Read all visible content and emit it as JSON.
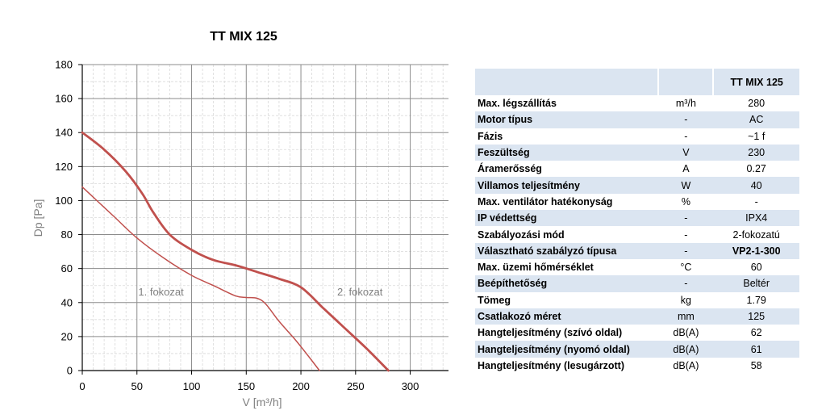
{
  "chart_data": {
    "type": "line",
    "title": "TT MIX 125",
    "xlabel": "V [m³/h]",
    "ylabel": "Dp [Pa]",
    "xlim": [
      0,
      335
    ],
    "ylim": [
      0,
      180
    ],
    "xticks": [
      0,
      50,
      100,
      150,
      200,
      250,
      300
    ],
    "yticks": [
      0,
      20,
      40,
      60,
      80,
      100,
      120,
      140,
      160,
      180
    ],
    "grid": true,
    "series": [
      {
        "name": "1. fokozat",
        "color": "#c0504d",
        "points": [
          [
            0,
            108
          ],
          [
            15,
            99
          ],
          [
            30,
            90
          ],
          [
            50,
            78
          ],
          [
            75,
            66
          ],
          [
            100,
            56
          ],
          [
            120,
            50
          ],
          [
            140,
            44
          ],
          [
            150,
            43
          ],
          [
            160,
            42.5
          ],
          [
            168,
            39
          ],
          [
            180,
            29
          ],
          [
            195,
            18
          ],
          [
            205,
            10
          ],
          [
            217,
            0
          ]
        ]
      },
      {
        "name": "2. fokozat",
        "color": "#c0504d",
        "points": [
          [
            0,
            140
          ],
          [
            20,
            130
          ],
          [
            40,
            117
          ],
          [
            55,
            104
          ],
          [
            65,
            93
          ],
          [
            80,
            80
          ],
          [
            100,
            71
          ],
          [
            120,
            65
          ],
          [
            140,
            62
          ],
          [
            160,
            58
          ],
          [
            180,
            54
          ],
          [
            200,
            49
          ],
          [
            220,
            37
          ],
          [
            240,
            25
          ],
          [
            260,
            13
          ],
          [
            280,
            0
          ]
        ]
      }
    ],
    "annotations": [
      {
        "text": "1. fokozat",
        "x": 72,
        "y": 46
      },
      {
        "text": "2. fokozat",
        "x": 254,
        "y": 46
      }
    ]
  },
  "table": {
    "header": [
      "",
      "",
      "TT MIX 125"
    ],
    "rows": [
      {
        "param": "Max. légszállítás",
        "unit": "m³/h",
        "value": "280"
      },
      {
        "param": "Motor típus",
        "unit": "-",
        "value": "AC"
      },
      {
        "param": "Fázis",
        "unit": "-",
        "value": "~1 f"
      },
      {
        "param": "Feszültség",
        "unit": "V",
        "value": "230"
      },
      {
        "param": "Áramerősség",
        "unit": "A",
        "value": "0.27"
      },
      {
        "param": "Villamos teljesítmény",
        "unit": "W",
        "value": "40"
      },
      {
        "param": "Max. ventilátor hatékonyság",
        "unit": "%",
        "value": "-"
      },
      {
        "param": "IP védettség",
        "unit": "-",
        "value": "IPX4"
      },
      {
        "param": "Szabályozási mód",
        "unit": "-",
        "value": "2-fokozatú"
      },
      {
        "param": "Választható szabályzó típusa",
        "unit": "-",
        "value": "VP2-1-300",
        "bold": true
      },
      {
        "param": "Max. üzemi hőmérséklet",
        "unit": "°C",
        "value": "60"
      },
      {
        "param": "Beépíthetőség",
        "unit": "-",
        "value": "Beltér"
      },
      {
        "param": "Tömeg",
        "unit": "kg",
        "value": "1.79"
      },
      {
        "param": "Csatlakozó méret",
        "unit": "mm",
        "value": "125"
      },
      {
        "param": "Hangteljesítmény (szívó oldal)",
        "unit": "dB(A)",
        "value": "62"
      },
      {
        "param": "Hangteljesítmény (nyomó oldal)",
        "unit": "dB(A)",
        "value": "61"
      },
      {
        "param": "Hangteljesítmény (lesugárzott)",
        "unit": "dB(A)",
        "value": "58"
      }
    ]
  }
}
